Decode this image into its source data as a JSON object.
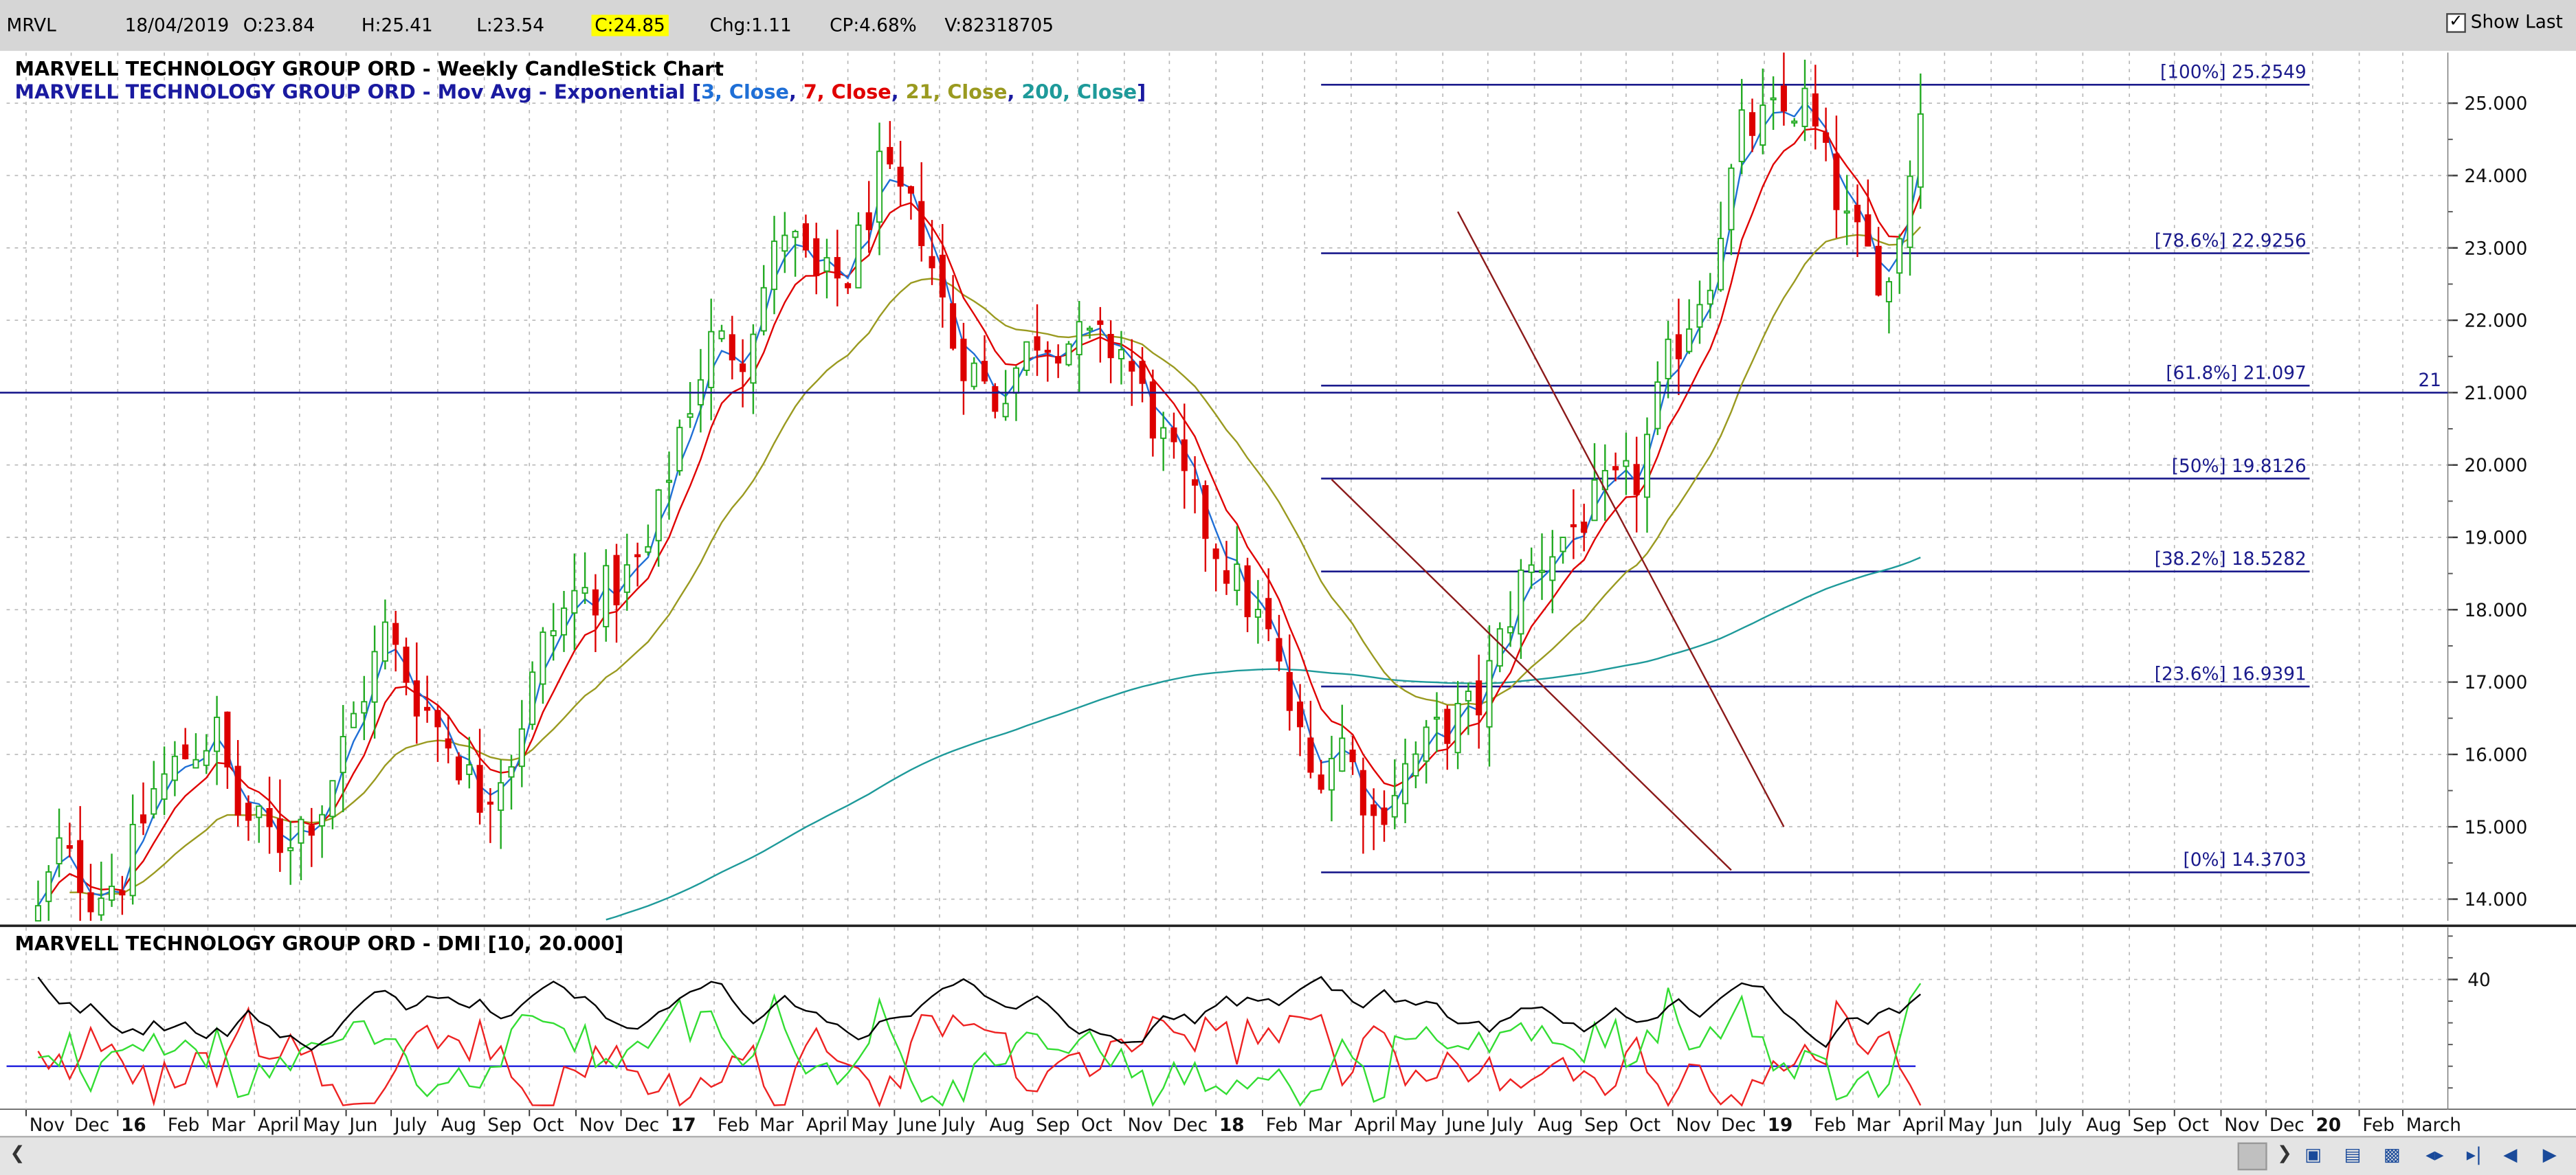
{
  "header": {
    "symbol": "MRVL",
    "date": "18/04/2019",
    "open": "O:23.84",
    "high": "H:25.41",
    "low": "L:23.54",
    "close": "C:24.85",
    "change": "Chg:1.11",
    "change_pct": "CP:4.68%",
    "volume": "V:82318705",
    "show_last_label": "Show Last",
    "show_last_checked": true
  },
  "colors": {
    "up_candle": "#22aa22",
    "down_candle": "#dd0000",
    "ema3": "#1f6fd6",
    "ema7": "#e00000",
    "ema21": "#9a9a20",
    "ema200": "#1e9a9a",
    "fib": "#1a1a8c",
    "hline": "#1a1a8c",
    "trend": "#8b1a1a",
    "adx": "#000000",
    "plus_di": "#33dd33",
    "minus_di": "#ee2222",
    "grid": "#b8b8b8"
  },
  "chart_data": [
    {
      "type": "candlestick",
      "title": "MARVELL TECHNOLOGY GROUP ORD - Weekly CandleStick Chart",
      "subtitle_prefix": "MARVELL TECHNOLOGY GROUP ORD - Mov Avg - Exponential [",
      "subtitle_parts": [
        {
          "text": "3, Close",
          "color": "#1f6fd6"
        },
        {
          "text": "7, Close",
          "color": "#e00000"
        },
        {
          "text": "21, Close",
          "color": "#9a9a20"
        },
        {
          "text": "200, Close",
          "color": "#1e9a9a"
        }
      ],
      "subtitle_suffix": "]",
      "ylim": [
        13.7,
        25.7
      ],
      "y_ticks": [
        "14.000",
        "15.000",
        "16.000",
        "17.000",
        "18.000",
        "19.000",
        "20.000",
        "21.000",
        "22.000",
        "23.000",
        "24.000",
        "25.000"
      ],
      "x_labels": [
        {
          "label": "Nov",
          "year": false
        },
        {
          "label": "Dec",
          "year": false
        },
        {
          "label": "16",
          "year": true
        },
        {
          "label": "Feb",
          "year": false
        },
        {
          "label": "Mar",
          "year": false
        },
        {
          "label": "April",
          "year": false
        },
        {
          "label": "May",
          "year": false
        },
        {
          "label": "Jun",
          "year": false
        },
        {
          "label": "July",
          "year": false
        },
        {
          "label": "Aug",
          "year": false
        },
        {
          "label": "Sep",
          "year": false
        },
        {
          "label": "Oct",
          "year": false
        },
        {
          "label": "Nov",
          "year": false
        },
        {
          "label": "Dec",
          "year": false
        },
        {
          "label": "17",
          "year": true
        },
        {
          "label": "Feb",
          "year": false
        },
        {
          "label": "Mar",
          "year": false
        },
        {
          "label": "April",
          "year": false
        },
        {
          "label": "May",
          "year": false
        },
        {
          "label": "June",
          "year": false
        },
        {
          "label": "July",
          "year": false
        },
        {
          "label": "Aug",
          "year": false
        },
        {
          "label": "Sep",
          "year": false
        },
        {
          "label": "Oct",
          "year": false
        },
        {
          "label": "Nov",
          "year": false
        },
        {
          "label": "Dec",
          "year": false
        },
        {
          "label": "18",
          "year": true
        },
        {
          "label": "Feb",
          "year": false
        },
        {
          "label": "Mar",
          "year": false
        },
        {
          "label": "April",
          "year": false
        },
        {
          "label": "May",
          "year": false
        },
        {
          "label": "June",
          "year": false
        },
        {
          "label": "July",
          "year": false
        },
        {
          "label": "Aug",
          "year": false
        },
        {
          "label": "Sep",
          "year": false
        },
        {
          "label": "Oct",
          "year": false
        },
        {
          "label": "Nov",
          "year": false
        },
        {
          "label": "Dec",
          "year": false
        },
        {
          "label": "19",
          "year": true
        },
        {
          "label": "Feb",
          "year": false
        },
        {
          "label": "Mar",
          "year": false
        },
        {
          "label": "April",
          "year": false
        },
        {
          "label": "May",
          "year": false
        },
        {
          "label": "Jun",
          "year": false
        },
        {
          "label": "July",
          "year": false
        },
        {
          "label": "Aug",
          "year": false
        },
        {
          "label": "Sep",
          "year": false
        },
        {
          "label": "Oct",
          "year": false
        },
        {
          "label": "Nov",
          "year": false
        },
        {
          "label": "Dec",
          "year": false
        },
        {
          "label": "20",
          "year": true
        },
        {
          "label": "Feb",
          "year": false
        },
        {
          "label": "March",
          "year": false
        }
      ],
      "x_start": "2015-10-19",
      "x_end": "2020-03-31",
      "series": [
        {
          "kind": "candles",
          "weekly_close_points": [
            [
              "2015-11-09",
              13.8
            ],
            [
              "2015-11-23",
              14.7
            ],
            [
              "2015-12-14",
              14.1
            ],
            [
              "2016-01-04",
              14.3
            ],
            [
              "2016-01-25",
              15.5
            ],
            [
              "2016-02-15",
              16.0
            ],
            [
              "2016-03-07",
              16.3
            ],
            [
              "2016-03-21",
              15.2
            ],
            [
              "2016-04-18",
              14.8
            ],
            [
              "2016-05-16",
              15.3
            ],
            [
              "2016-06-06",
              16.5
            ],
            [
              "2016-06-27",
              17.7
            ],
            [
              "2016-07-18",
              16.8
            ],
            [
              "2016-08-08",
              16.2
            ],
            [
              "2016-08-29",
              15.4
            ],
            [
              "2016-09-19",
              16.0
            ],
            [
              "2016-10-10",
              17.5
            ],
            [
              "2016-10-31",
              18.2
            ],
            [
              "2016-11-28",
              18.3
            ],
            [
              "2016-12-19",
              18.8
            ],
            [
              "2017-01-09",
              20.5
            ],
            [
              "2017-01-30",
              21.7
            ],
            [
              "2017-02-20",
              21.6
            ],
            [
              "2017-03-20",
              23.3
            ],
            [
              "2017-04-10",
              22.5
            ],
            [
              "2017-05-01",
              22.6
            ],
            [
              "2017-05-22",
              24.0
            ],
            [
              "2017-06-19",
              23.3
            ],
            [
              "2017-07-10",
              21.7
            ],
            [
              "2017-08-07",
              20.9
            ],
            [
              "2017-09-04",
              21.8
            ],
            [
              "2017-10-02",
              21.7
            ],
            [
              "2017-10-30",
              21.6
            ],
            [
              "2017-11-27",
              20.3
            ],
            [
              "2017-12-18",
              19.4
            ],
            [
              "2018-01-08",
              18.6
            ],
            [
              "2018-02-05",
              17.6
            ],
            [
              "2018-03-05",
              15.7
            ],
            [
              "2018-03-26",
              16.2
            ],
            [
              "2018-04-16",
              15.1
            ],
            [
              "2018-05-07",
              15.8
            ],
            [
              "2018-05-28",
              16.3
            ],
            [
              "2018-06-25",
              16.7
            ],
            [
              "2018-07-23",
              18.4
            ],
            [
              "2018-08-20",
              19.0
            ],
            [
              "2018-09-17",
              19.6
            ],
            [
              "2018-10-08",
              19.8
            ],
            [
              "2018-10-29",
              21.4
            ],
            [
              "2018-11-26",
              22.7
            ],
            [
              "2018-12-17",
              24.6
            ],
            [
              "2019-01-07",
              24.8
            ],
            [
              "2019-01-28",
              25.0
            ],
            [
              "2019-02-25",
              23.3
            ],
            [
              "2019-03-25",
              22.5
            ],
            [
              "2019-04-15",
              24.85
            ]
          ]
        }
      ],
      "hline_value": 21,
      "hline_label": "21",
      "fib_levels": [
        {
          "label": "[100%] 25.2549",
          "value": 25.2549
        },
        {
          "label": "[78.6%] 22.9256",
          "value": 22.9256
        },
        {
          "label": "[61.8%] 21.097",
          "value": 21.097
        },
        {
          "label": "[50%] 19.8126",
          "value": 19.8126
        },
        {
          "label": "[38.2%] 18.5282",
          "value": 18.5282
        },
        {
          "label": "[23.6%] 16.9391",
          "value": 16.9391
        },
        {
          "label": "[0%] 14.3703",
          "value": 14.3703
        }
      ],
      "fib_x_range": [
        "2018-03-12",
        "2019-12-30"
      ],
      "trendlines": [
        {
          "from": [
            "2018-03-19",
            19.8
          ],
          "to": [
            "2018-12-10",
            14.4
          ]
        },
        {
          "from": [
            "2018-06-11",
            23.5
          ],
          "to": [
            "2019-01-14",
            15.0
          ]
        }
      ]
    },
    {
      "type": "line",
      "title": "MARVELL TECHNOLOGY GROUP ORD - DMI [10, 20.000]",
      "ylim": [
        10,
        52
      ],
      "y_ticks": [
        "40"
      ],
      "reference_line": 20
    }
  ]
}
